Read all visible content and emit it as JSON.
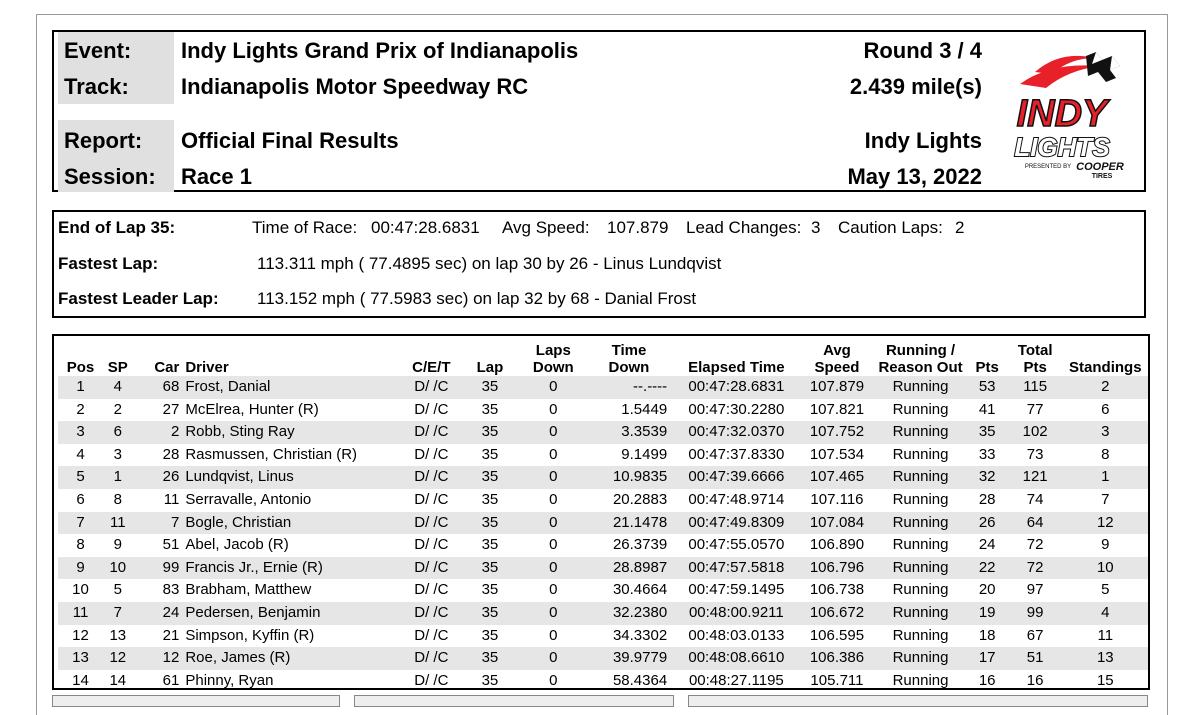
{
  "header": {
    "event_label": "Event:",
    "event": "Indy Lights Grand Prix of Indianapolis",
    "round": "Round 3 / 4",
    "track_label": "Track:",
    "track": "Indianapolis Motor Speedway RC",
    "length": "2.439 mile(s)",
    "report_label": "Report:",
    "report": "Official Final Results",
    "series": "Indy Lights",
    "session_label": "Session:",
    "session": "Race 1",
    "date": "May 13, 2022"
  },
  "logo": {
    "line1": "INDY",
    "line2": "LIGHTS",
    "presented_by": "PRESENTED BY",
    "sponsor_top": "COOPER",
    "sponsor_bottom": "TIRES"
  },
  "summary": {
    "end_lap_label": "End of Lap 35:",
    "time_of_race_label": "Time of Race:",
    "time_of_race": "00:47:28.6831",
    "avg_speed_label": "Avg Speed:",
    "avg_speed": "107.879",
    "lead_changes_label": "Lead Changes:",
    "lead_changes": "3",
    "caution_laps_label": "Caution Laps:",
    "caution_laps": "2",
    "fastest_lap_label": "Fastest Lap:",
    "fastest_lap": "113.311 mph ( 77.4895 sec) on lap 30 by 26 - Linus Lundqvist",
    "fastest_leader_lap_label": "Fastest Leader Lap:",
    "fastest_leader_lap": "113.152 mph ( 77.5983 sec) on lap 32 by 68 - Danial Frost"
  },
  "columns": {
    "pos": "Pos",
    "sp": "SP",
    "car": "Car",
    "driver": "Driver",
    "cet": "C/E/T",
    "lap": "Lap",
    "laps_down_1": "Laps",
    "laps_down_2": "Down",
    "time_down_1": "Time",
    "time_down_2": "Down",
    "elapsed": "Elapsed Time",
    "avg_speed_1": "Avg",
    "avg_speed_2": "Speed",
    "running_1": "Running /",
    "running_2": "Reason Out",
    "pts": "Pts",
    "total_pts_1": "Total",
    "total_pts_2": "Pts",
    "standings": "Standings"
  },
  "rows": [
    {
      "pos": "1",
      "sp": "4",
      "car": "68",
      "driver": "Frost, Danial",
      "cet": "D/ /C",
      "lap": "35",
      "laps_down": "0",
      "time_down": "--.----",
      "elapsed": "00:47:28.6831",
      "speed": "107.879",
      "status": "Running",
      "pts": "53",
      "total": "115",
      "standing": "2"
    },
    {
      "pos": "2",
      "sp": "2",
      "car": "27",
      "driver": "McElrea, Hunter (R)",
      "cet": "D/ /C",
      "lap": "35",
      "laps_down": "0",
      "time_down": "1.5449",
      "elapsed": "00:47:30.2280",
      "speed": "107.821",
      "status": "Running",
      "pts": "41",
      "total": "77",
      "standing": "6"
    },
    {
      "pos": "3",
      "sp": "6",
      "car": "2",
      "driver": "Robb, Sting Ray",
      "cet": "D/ /C",
      "lap": "35",
      "laps_down": "0",
      "time_down": "3.3539",
      "elapsed": "00:47:32.0370",
      "speed": "107.752",
      "status": "Running",
      "pts": "35",
      "total": "102",
      "standing": "3"
    },
    {
      "pos": "4",
      "sp": "3",
      "car": "28",
      "driver": "Rasmussen, Christian (R)",
      "cet": "D/ /C",
      "lap": "35",
      "laps_down": "0",
      "time_down": "9.1499",
      "elapsed": "00:47:37.8330",
      "speed": "107.534",
      "status": "Running",
      "pts": "33",
      "total": "73",
      "standing": "8"
    },
    {
      "pos": "5",
      "sp": "1",
      "car": "26",
      "driver": "Lundqvist, Linus",
      "cet": "D/ /C",
      "lap": "35",
      "laps_down": "0",
      "time_down": "10.9835",
      "elapsed": "00:47:39.6666",
      "speed": "107.465",
      "status": "Running",
      "pts": "32",
      "total": "121",
      "standing": "1"
    },
    {
      "pos": "6",
      "sp": "8",
      "car": "11",
      "driver": "Serravalle, Antonio",
      "cet": "D/ /C",
      "lap": "35",
      "laps_down": "0",
      "time_down": "20.2883",
      "elapsed": "00:47:48.9714",
      "speed": "107.116",
      "status": "Running",
      "pts": "28",
      "total": "74",
      "standing": "7"
    },
    {
      "pos": "7",
      "sp": "11",
      "car": "7",
      "driver": "Bogle, Christian",
      "cet": "D/ /C",
      "lap": "35",
      "laps_down": "0",
      "time_down": "21.1478",
      "elapsed": "00:47:49.8309",
      "speed": "107.084",
      "status": "Running",
      "pts": "26",
      "total": "64",
      "standing": "12"
    },
    {
      "pos": "8",
      "sp": "9",
      "car": "51",
      "driver": "Abel, Jacob (R)",
      "cet": "D/ /C",
      "lap": "35",
      "laps_down": "0",
      "time_down": "26.3739",
      "elapsed": "00:47:55.0570",
      "speed": "106.890",
      "status": "Running",
      "pts": "24",
      "total": "72",
      "standing": "9"
    },
    {
      "pos": "9",
      "sp": "10",
      "car": "99",
      "driver": "Francis Jr., Ernie (R)",
      "cet": "D/ /C",
      "lap": "35",
      "laps_down": "0",
      "time_down": "28.8987",
      "elapsed": "00:47:57.5818",
      "speed": "106.796",
      "status": "Running",
      "pts": "22",
      "total": "72",
      "standing": "10"
    },
    {
      "pos": "10",
      "sp": "5",
      "car": "83",
      "driver": "Brabham, Matthew",
      "cet": "D/ /C",
      "lap": "35",
      "laps_down": "0",
      "time_down": "30.4664",
      "elapsed": "00:47:59.1495",
      "speed": "106.738",
      "status": "Running",
      "pts": "20",
      "total": "97",
      "standing": "5"
    },
    {
      "pos": "11",
      "sp": "7",
      "car": "24",
      "driver": "Pedersen, Benjamin",
      "cet": "D/ /C",
      "lap": "35",
      "laps_down": "0",
      "time_down": "32.2380",
      "elapsed": "00:48:00.9211",
      "speed": "106.672",
      "status": "Running",
      "pts": "19",
      "total": "99",
      "standing": "4"
    },
    {
      "pos": "12",
      "sp": "13",
      "car": "21",
      "driver": "Simpson, Kyffin (R)",
      "cet": "D/ /C",
      "lap": "35",
      "laps_down": "0",
      "time_down": "34.3302",
      "elapsed": "00:48:03.0133",
      "speed": "106.595",
      "status": "Running",
      "pts": "18",
      "total": "67",
      "standing": "11"
    },
    {
      "pos": "13",
      "sp": "12",
      "car": "12",
      "driver": "Roe, James (R)",
      "cet": "D/ /C",
      "lap": "35",
      "laps_down": "0",
      "time_down": "39.9779",
      "elapsed": "00:48:08.6610",
      "speed": "106.386",
      "status": "Running",
      "pts": "17",
      "total": "51",
      "standing": "13"
    },
    {
      "pos": "14",
      "sp": "14",
      "car": "61",
      "driver": "Phinny, Ryan",
      "cet": "D/ /C",
      "lap": "35",
      "laps_down": "0",
      "time_down": "58.4364",
      "elapsed": "00:48:27.1195",
      "speed": "105.711",
      "status": "Running",
      "pts": "16",
      "total": "16",
      "standing": "15"
    }
  ],
  "colors": {
    "label_bg": "#e0e0e0",
    "row_shade": "#e6e6e6",
    "logo_red": "#e8202a",
    "logo_black": "#111111"
  }
}
